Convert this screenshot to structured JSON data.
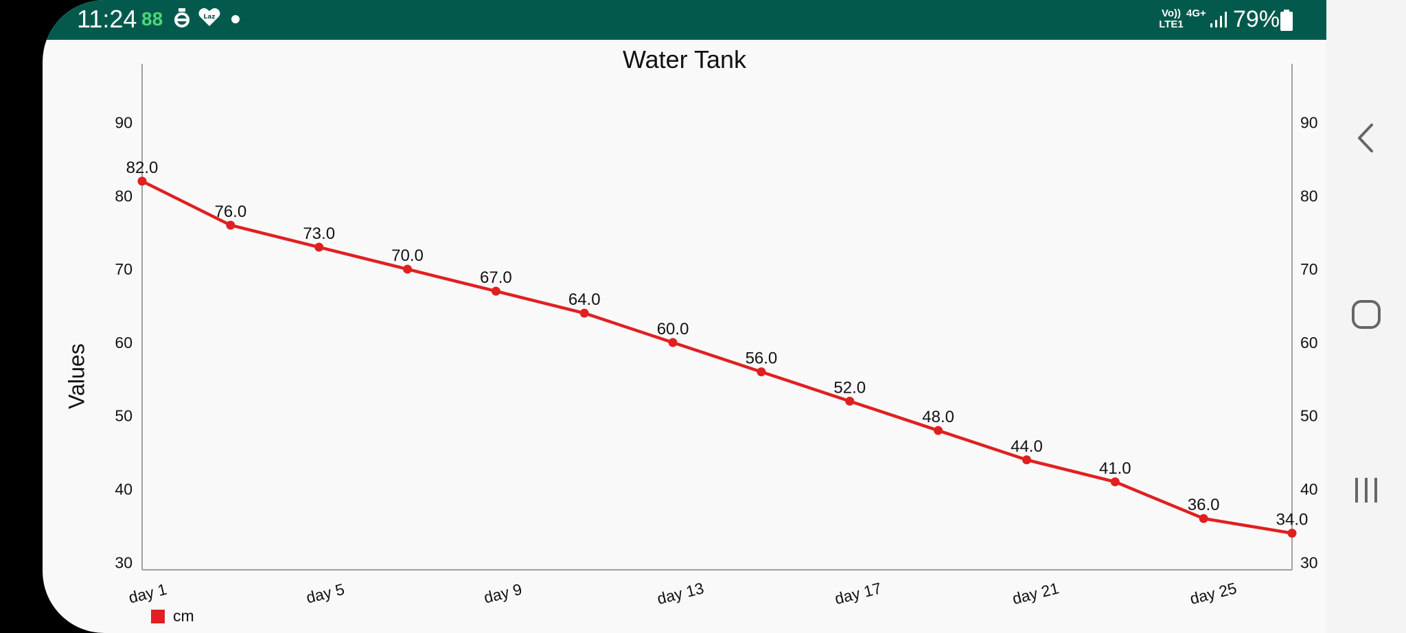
{
  "status_bar": {
    "time": "11:24",
    "indicator": "88",
    "network_volte": "Vo)) LTE1",
    "network_type": "4G+",
    "battery": "79%"
  },
  "chart": {
    "title": "Water Tank",
    "y_axis_label": "Values",
    "legend_label": "cm",
    "line_color": "#e02020"
  },
  "chart_data": {
    "type": "line",
    "title": "Water Tank",
    "xlabel": "",
    "ylabel": "Values",
    "x_tick_labels": [
      "day 1",
      "day 5",
      "day 9",
      "day 13",
      "day 17",
      "day 21",
      "day 25"
    ],
    "y_ticks": [
      30,
      40,
      50,
      60,
      70,
      80,
      90
    ],
    "ylim": [
      29,
      98
    ],
    "grid": false,
    "dual_y_axis": true,
    "legend_position": "bottom-left",
    "series": [
      {
        "name": "cm",
        "color": "#e02020",
        "x": [
          1,
          3,
          5,
          7,
          9,
          11,
          13,
          15,
          17,
          19,
          21,
          23,
          25,
          27
        ],
        "values": [
          82.0,
          76.0,
          73.0,
          70.0,
          67.0,
          64.0,
          60.0,
          56.0,
          52.0,
          48.0,
          44.0,
          41.0,
          36.0,
          34.0
        ],
        "labels": [
          "82.0",
          "76.0",
          "73.0",
          "70.0",
          "67.0",
          "64.0",
          "60.0",
          "56.0",
          "52.0",
          "48.0",
          "44.0",
          "41.0",
          "36.0",
          "34.0"
        ]
      }
    ]
  },
  "nav": {
    "back": "back-icon",
    "home": "home-icon",
    "recents": "recents-icon"
  }
}
